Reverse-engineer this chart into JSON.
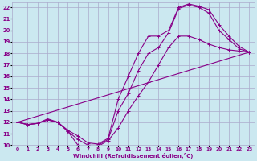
{
  "xlabel": "Windchill (Refroidissement éolien,°C)",
  "bg_color": "#cbe8f0",
  "grid_color": "#aaaacc",
  "line_color": "#880088",
  "xlim": [
    -0.5,
    23.5
  ],
  "ylim": [
    10,
    22.4
  ],
  "xticks": [
    0,
    1,
    2,
    3,
    4,
    5,
    6,
    7,
    8,
    9,
    10,
    11,
    12,
    13,
    14,
    15,
    16,
    17,
    18,
    19,
    20,
    21,
    22,
    23
  ],
  "yticks": [
    10,
    11,
    12,
    13,
    14,
    15,
    16,
    17,
    18,
    19,
    20,
    21,
    22
  ],
  "curves": [
    {
      "x": [
        0,
        1,
        2,
        3,
        4,
        5,
        6,
        7,
        8,
        9,
        10,
        11,
        12,
        13,
        14,
        15,
        16,
        17,
        18,
        19,
        20,
        21,
        22,
        23
      ],
      "y": [
        12,
        11.8,
        11.9,
        12.2,
        12.0,
        11.2,
        10.0,
        9.9,
        9.9,
        10.4,
        11.5,
        13.0,
        14.3,
        15.5,
        17.0,
        18.5,
        19.5,
        19.5,
        19.2,
        18.8,
        18.5,
        18.3,
        18.2,
        18.1
      ]
    },
    {
      "x": [
        0,
        1,
        2,
        3,
        4,
        5,
        6,
        7,
        8,
        9,
        10,
        11,
        12,
        13,
        14,
        15,
        16,
        17,
        18,
        19,
        20,
        21,
        22,
        23
      ],
      "y": [
        12,
        11.8,
        11.9,
        12.2,
        12.0,
        11.2,
        10.5,
        10.0,
        10.0,
        10.5,
        13.0,
        14.5,
        16.5,
        18.0,
        18.5,
        19.8,
        21.9,
        22.2,
        22.0,
        21.5,
        20.0,
        19.2,
        18.4,
        18.1
      ]
    },
    {
      "x": [
        0,
        1,
        2,
        3,
        4,
        5,
        6,
        7,
        8,
        9,
        10,
        11,
        12,
        13,
        14,
        15,
        16,
        17,
        18,
        19,
        20,
        21,
        22,
        23
      ],
      "y": [
        12,
        11.8,
        11.9,
        12.3,
        12.0,
        11.3,
        10.8,
        10.2,
        10.1,
        10.6,
        14.0,
        16.0,
        18.0,
        19.5,
        19.5,
        20.0,
        22.0,
        22.3,
        22.1,
        21.8,
        20.5,
        19.5,
        18.6,
        18.1
      ]
    },
    {
      "x": [
        0,
        23
      ],
      "y": [
        12,
        18.1
      ]
    }
  ]
}
